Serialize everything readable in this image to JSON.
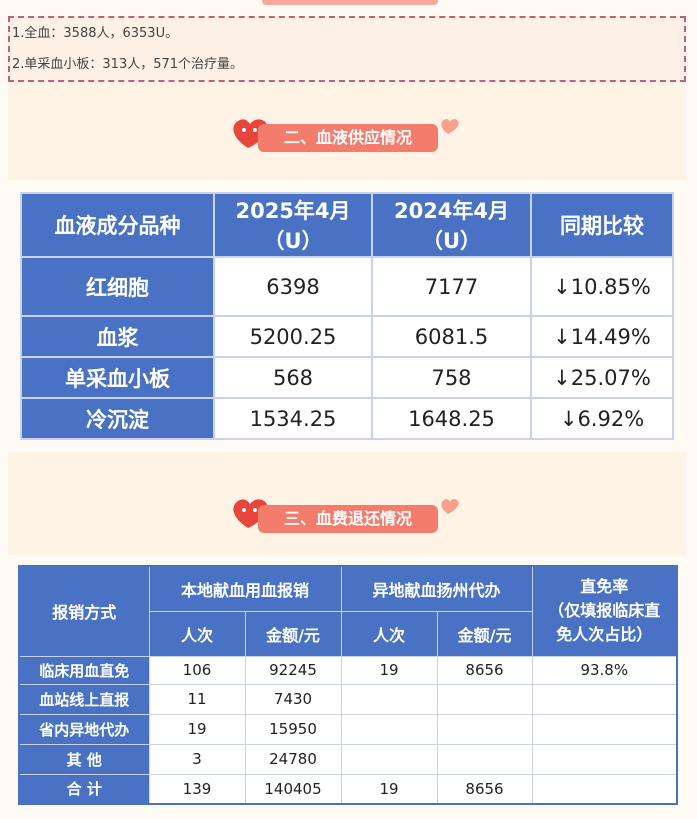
{
  "notes": [
    "1.全血：3588人，6353U。",
    "2.单采血小板：313人，571个治疗量。"
  ],
  "section2": {
    "title": "二、血液供应情况",
    "table": {
      "header": [
        [
          "血液成分品种"
        ],
        [
          "2025年4月",
          "（U）"
        ],
        [
          "2024年4月",
          "（U）"
        ],
        [
          "同期比较"
        ]
      ],
      "rows": [
        [
          "红细胞",
          "6398",
          "7177",
          "↓10.85%"
        ],
        [
          "血浆",
          "5200.25",
          "6081.5",
          "↓14.49%"
        ],
        [
          "单采血小板",
          "568",
          "758",
          "↓25.07%"
        ],
        [
          "冷沉淀",
          "1534.25",
          "1648.25",
          "↓6.92%"
        ]
      ]
    }
  },
  "section3": {
    "title": "三、血费退还情况",
    "table": {
      "method": "报销方式",
      "local": "本地献血用血报销",
      "remote": "异地献血扬州代办",
      "rate": [
        "直免率",
        "（仅填报临床直",
        "免人次占比）"
      ],
      "sub": [
        "人次",
        "金额/元",
        "人次",
        "金额/元"
      ],
      "rows": [
        [
          "临床用血直免",
          "106",
          "92245",
          "19",
          "8656",
          "93.8%"
        ],
        [
          "血站线上直报",
          "11",
          "7430",
          null,
          null,
          null
        ],
        [
          "省内异地代办",
          "19",
          "15950",
          null,
          null,
          null
        ],
        [
          "其 他",
          "3",
          "24780",
          null,
          null,
          null
        ],
        [
          "合 计",
          "139",
          "140405",
          "19",
          "8656",
          null
        ]
      ]
    }
  }
}
